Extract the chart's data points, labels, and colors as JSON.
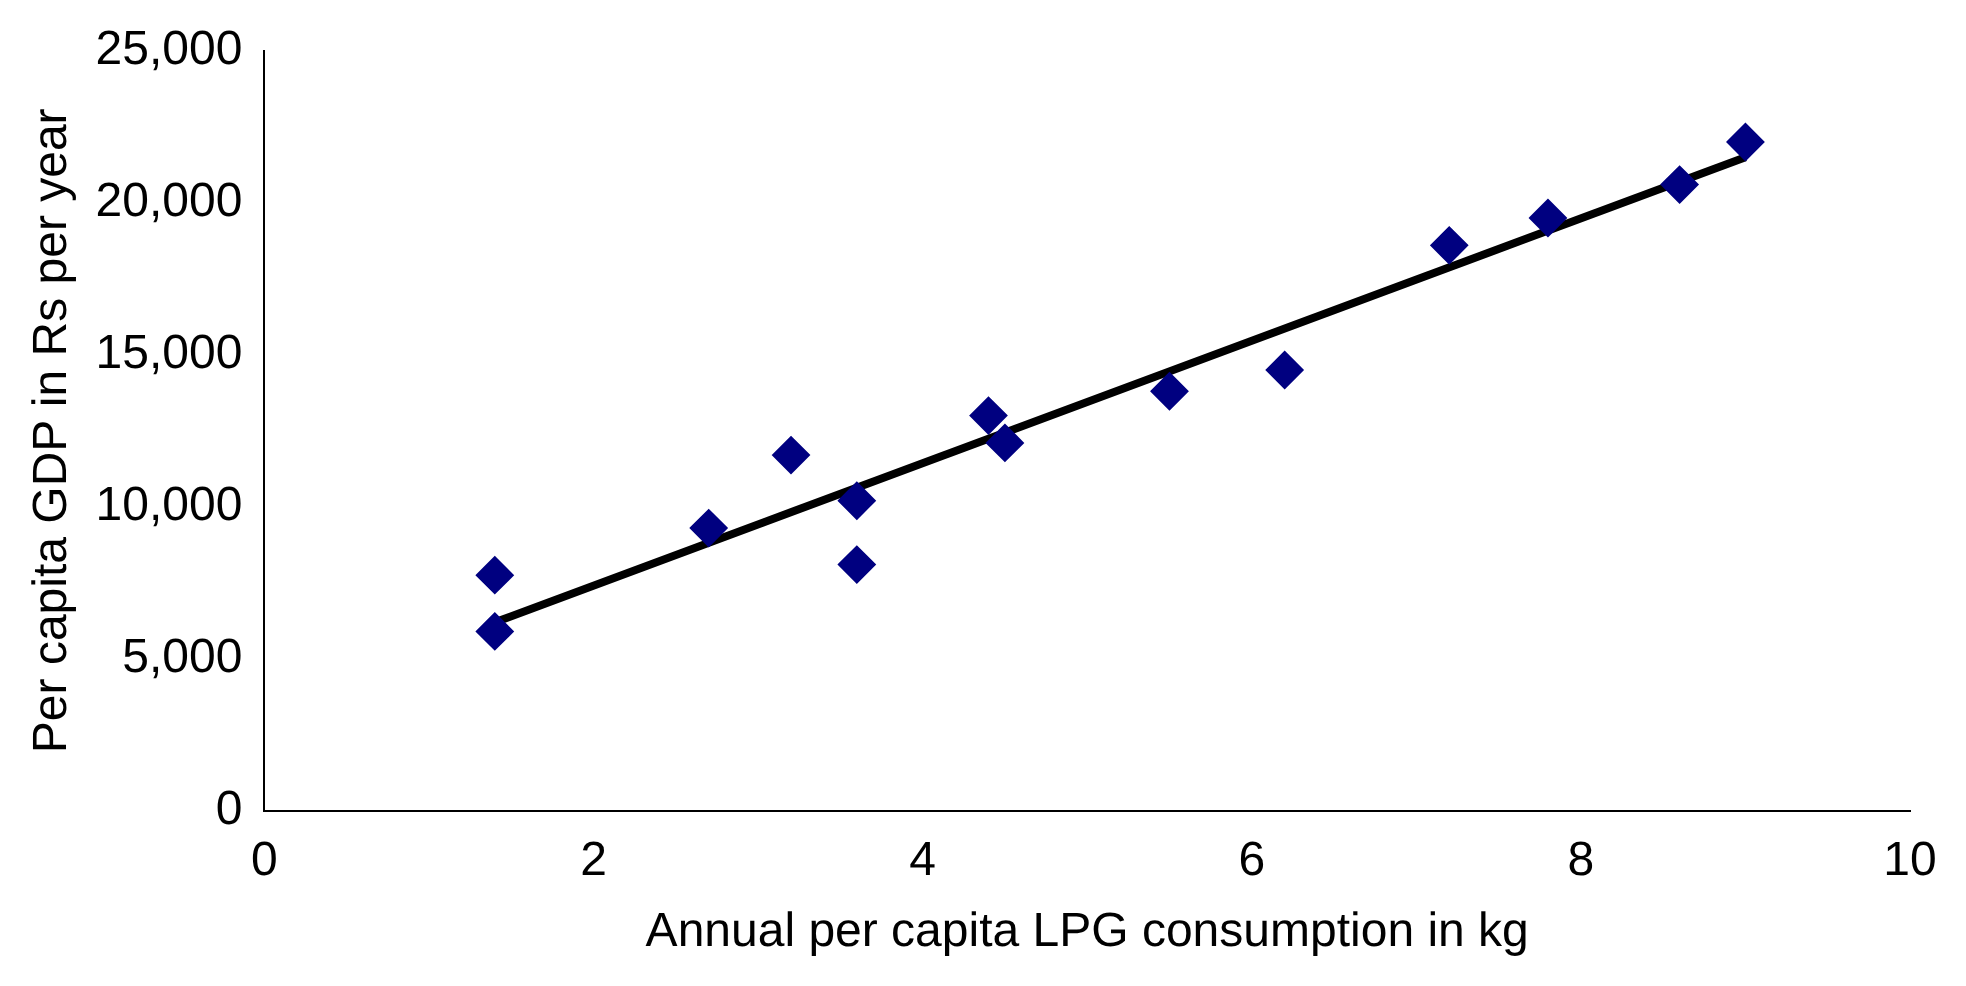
{
  "chart_data": {
    "type": "scatter",
    "xlabel": "Annual per capita LPG consumption in kg",
    "ylabel": "Per capita GDP in Rs per year",
    "xlim": [
      0,
      10
    ],
    "xticks": [
      0,
      2,
      4,
      6,
      8,
      10
    ],
    "ylim": [
      0,
      25000
    ],
    "yticks": [
      {
        "value": 0,
        "label": "0"
      },
      {
        "value": 5000,
        "label": "5,000"
      },
      {
        "value": 10000,
        "label": "10,000"
      },
      {
        "value": 15000,
        "label": "15,000"
      },
      {
        "value": 20000,
        "label": "20,000"
      },
      {
        "value": 25000,
        "label": "25,000"
      }
    ],
    "grid": false,
    "legend": false,
    "marker": "diamond",
    "series": [
      {
        "type": "scatter",
        "color": "#000080",
        "x": [
          1.4,
          1.4,
          2.7,
          3.2,
          3.6,
          3.6,
          4.4,
          4.5,
          5.5,
          6.2,
          7.2,
          7.8,
          8.6,
          9.0
        ],
        "values": [
          7750,
          5900,
          9300,
          11700,
          10200,
          8100,
          13000,
          12100,
          13800,
          14500,
          18600,
          19500,
          20600,
          22000
        ]
      },
      {
        "type": "line",
        "color": "#000000",
        "marker": "none",
        "x": [
          1.4,
          9.0
        ],
        "values": [
          6200,
          21500
        ]
      }
    ]
  }
}
